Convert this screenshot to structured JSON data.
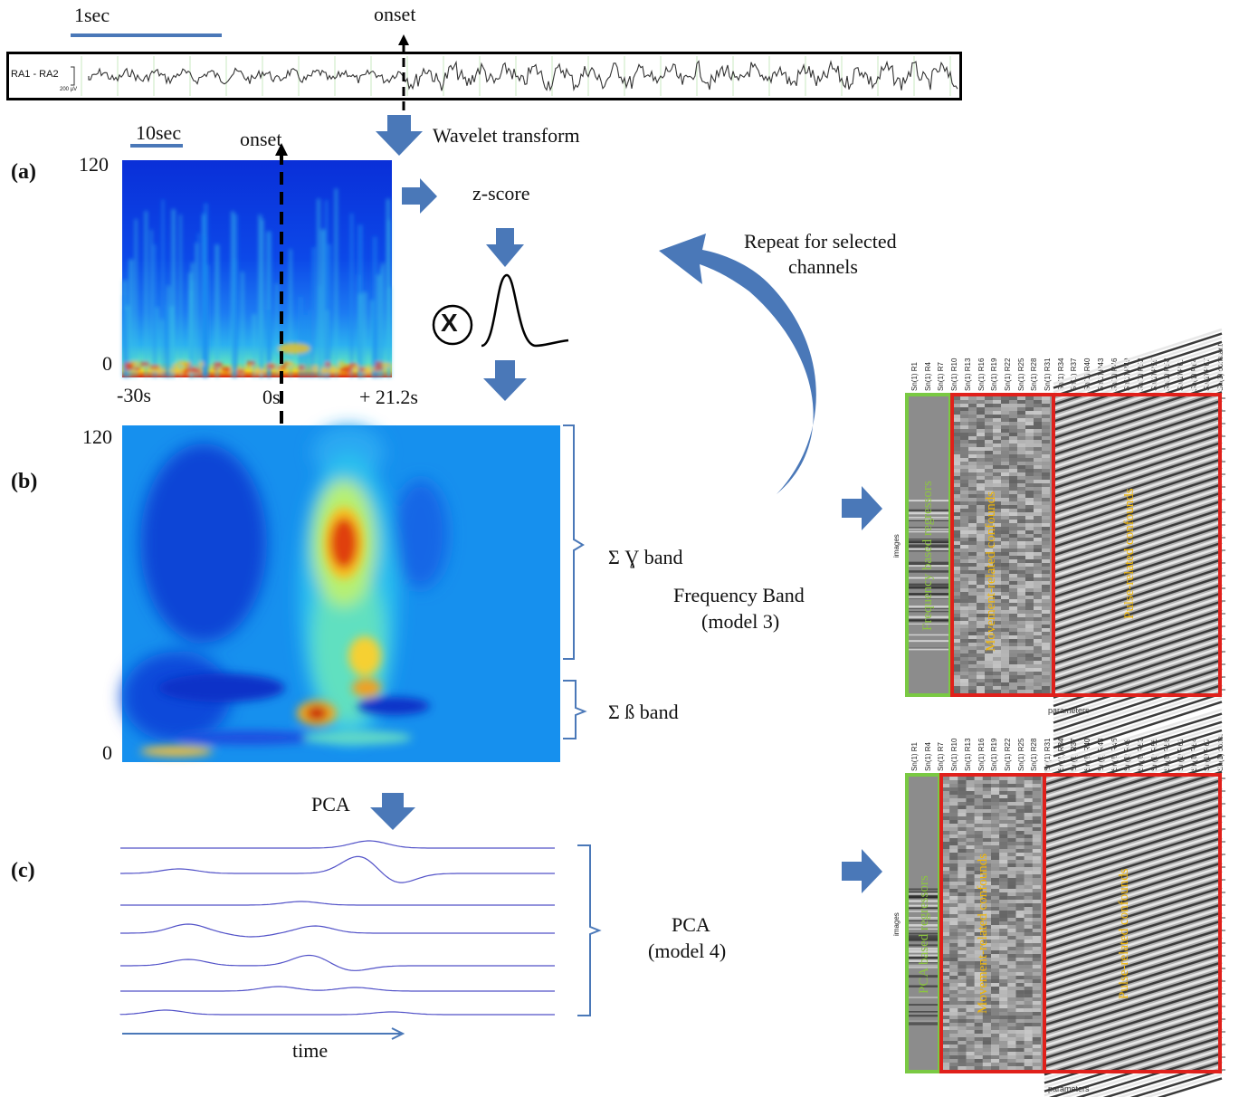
{
  "top": {
    "scale_label": "1sec",
    "onset_label": "onset",
    "channel_label": "RA1 - RA2",
    "amplitude_label": "200 µV",
    "wavelet_label": "Wavelet transform"
  },
  "panel_a": {
    "label": "(a)",
    "scale_label": "10sec",
    "onset_label": "onset",
    "y_max": "120",
    "y_min": "0",
    "x_start": "-30s",
    "x_zero": "0s",
    "x_end": "+ 21.2s"
  },
  "process": {
    "zscore_label": "z-score",
    "times_symbol": "X",
    "repeat_label_line1": "Repeat for selected",
    "repeat_label_line2": "channels"
  },
  "panel_b": {
    "label": "(b)",
    "y_max": "120",
    "y_min": "0",
    "gamma_label": "Σ   Ɣ band",
    "beta_label": "Σ  ß band",
    "model_label_line1": "Frequency Band",
    "model_label_line2": "(model 3)"
  },
  "panel_c": {
    "label": "(c)",
    "pca_arrow_label": "PCA",
    "model_label_line1": "PCA",
    "model_label_line2": "(model 4)",
    "time_label": "time"
  },
  "design_matrix_top": {
    "regressor_label": "Frequency based regressors",
    "movement_label": "Movement-related confounds",
    "pulse_label": "Pulse-related confounds",
    "x_axis_label": "parameters",
    "y_axis_label": "images",
    "column_labels": [
      "Sn(1) R1",
      "Sn(1) R4",
      "Sn(1) R7",
      "Sn(1) R10",
      "Sn(1) R13",
      "Sn(1) R16",
      "Sn(1) R19",
      "Sn(1) R22",
      "Sn(1) R25",
      "Sn(1) R28",
      "Sn(1) R31",
      "Sn(1) R34",
      "Sn(1) R37",
      "Sn(1) R40",
      "Sn(1) R43",
      "Sn(1) R46",
      "Sn(1) R49",
      "Sn(1) R52",
      "Sn(1) R55",
      "Sn(1) R58",
      "Sn(1) R61",
      "Sn(1) R64",
      "Sn(1) R67",
      "Sn(1) constant"
    ]
  },
  "design_matrix_bottom": {
    "regressor_label": "PCA based regressors",
    "movement_label": "Movement-related confounds",
    "pulse_label": "Pulse-related confounds",
    "x_axis_label": "parameters",
    "y_axis_label": "images",
    "column_labels": [
      "Sn(1) R1",
      "Sn(1) R4",
      "Sn(1) R7",
      "Sn(1) R10",
      "Sn(1) R13",
      "Sn(1) R16",
      "Sn(1) R19",
      "Sn(1) R22",
      "Sn(1) R25",
      "Sn(1) R28",
      "Sn(1) R31",
      "Sn(1) R34",
      "Sn(1) R37",
      "Sn(1) R40",
      "Sn(1) R43",
      "Sn(1) R46",
      "Sn(1) R49",
      "Sn(1) R52",
      "Sn(1) R55",
      "Sn(1) R58",
      "Sn(1) R61",
      "Sn(1) R64",
      "Sn(1) R67",
      "Sn(1) const"
    ]
  },
  "colors": {
    "arrow": "#4a78b8",
    "scale_bar": "#4a78b8",
    "green_box": "#7ac943",
    "red_box": "#e0201b",
    "label_green": "#8cc63f",
    "label_yellow": "#f2b705",
    "pca_trace": "#5252c8"
  }
}
